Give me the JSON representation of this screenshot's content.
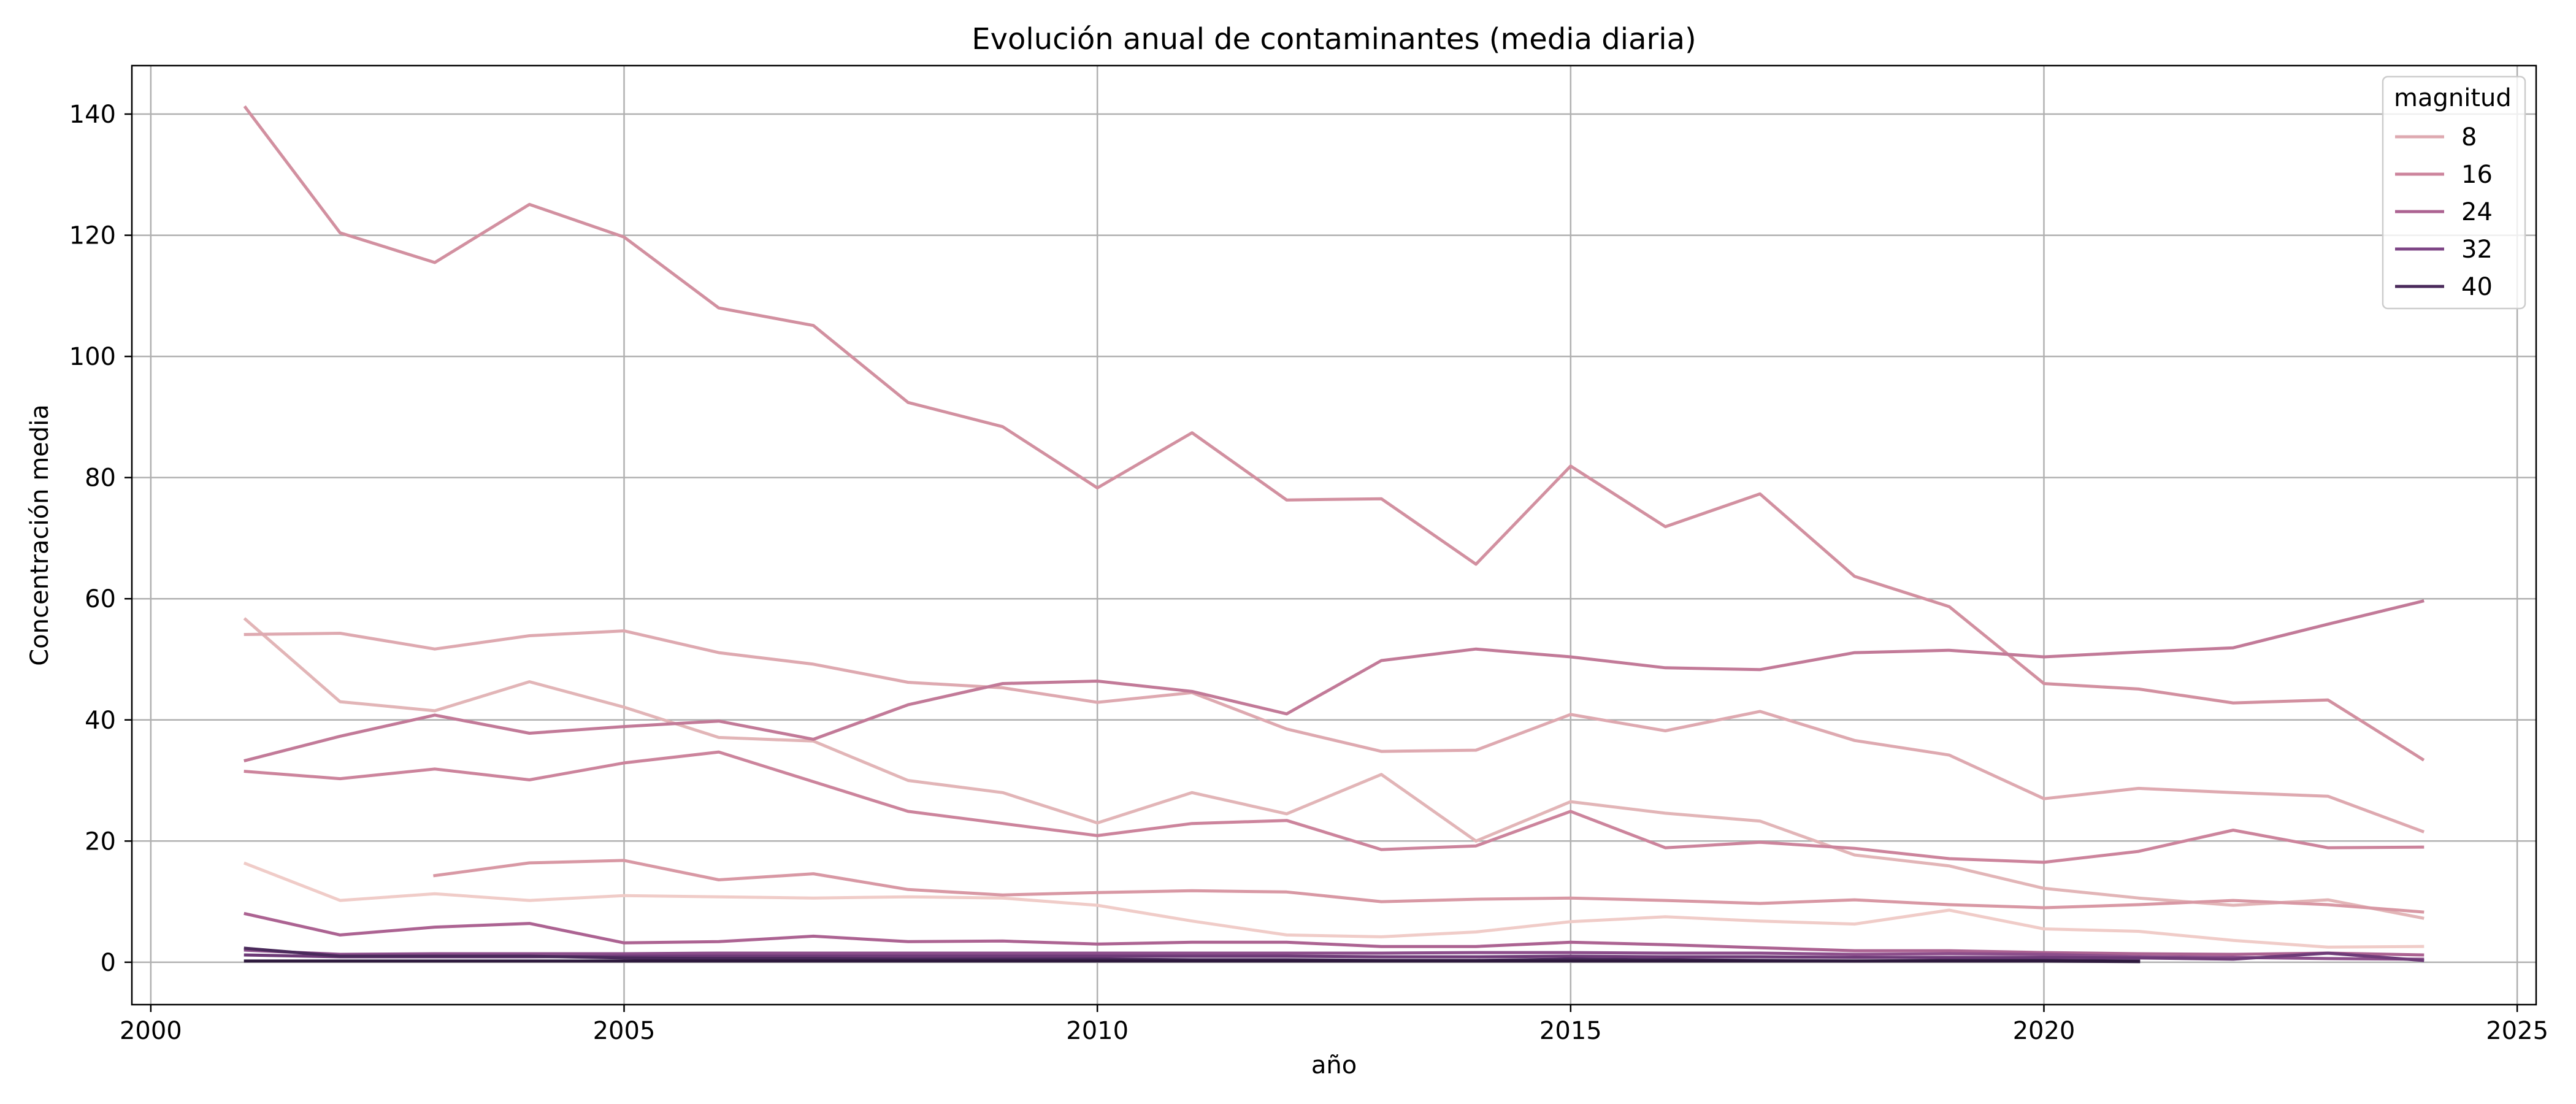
{
  "chart_data": {
    "type": "line",
    "title": "Evolución anual de contaminantes (media diaria)",
    "xlabel": "año",
    "ylabel": "Concentración media",
    "xlim": [
      1999.8,
      2025.2
    ],
    "ylim": [
      -7,
      148
    ],
    "xticks": [
      2000,
      2005,
      2010,
      2015,
      2020,
      2025
    ],
    "yticks": [
      0,
      20,
      40,
      60,
      80,
      100,
      120,
      140
    ],
    "grid": true,
    "legend": {
      "title": "magnitud",
      "placement": "top-right",
      "entries": [
        {
          "label": "8",
          "color": "#dea9b0"
        },
        {
          "label": "16",
          "color": "#cc849c"
        },
        {
          "label": "24",
          "color": "#ac6392"
        },
        {
          "label": "32",
          "color": "#7e4686"
        },
        {
          "label": "40",
          "color": "#4a2a5b"
        }
      ]
    },
    "series": [
      {
        "color": "#f0ccc8",
        "x": [
          2001,
          2002,
          2003,
          2004,
          2005,
          2006,
          2007,
          2008,
          2009,
          2010,
          2011,
          2012,
          2013,
          2014,
          2015,
          2016,
          2017,
          2018,
          2019,
          2020,
          2021,
          2022,
          2023,
          2024
        ],
        "y": [
          16.3,
          10.2,
          11.3,
          10.2,
          11.0,
          10.8,
          10.6,
          10.8,
          10.6,
          9.4,
          6.8,
          4.5,
          4.2,
          5.0,
          6.7,
          7.5,
          6.8,
          6.3,
          8.6,
          5.5,
          5.1,
          3.6,
          2.5,
          2.6
        ]
      },
      {
        "color": "#e2b5b7",
        "x": [
          2001,
          2002,
          2003,
          2004,
          2005,
          2006,
          2007,
          2008,
          2009,
          2010,
          2011,
          2012,
          2013,
          2014,
          2015,
          2016,
          2017,
          2018,
          2019,
          2020,
          2021,
          2022,
          2023,
          2024
        ],
        "y": [
          56.6,
          43.0,
          41.5,
          46.3,
          42.1,
          37.1,
          36.5,
          30.0,
          28.0,
          23.0,
          28.0,
          24.5,
          31.0,
          20.0,
          26.5,
          24.6,
          23.3,
          17.7,
          15.9,
          12.2,
          10.6,
          9.4,
          10.3,
          7.3
        ]
      },
      {
        "color": "#dea9b0",
        "x": [
          2001,
          2002,
          2003,
          2004,
          2005,
          2006,
          2007,
          2008,
          2009,
          2010,
          2011,
          2012,
          2013,
          2014,
          2015,
          2016,
          2017,
          2018,
          2019,
          2020,
          2021,
          2022,
          2023,
          2024
        ],
        "y": [
          54.1,
          54.3,
          51.7,
          53.9,
          54.7,
          51.1,
          49.2,
          46.2,
          45.3,
          42.9,
          44.5,
          38.5,
          34.8,
          35.0,
          40.9,
          38.2,
          41.4,
          36.6,
          34.2,
          27.0,
          28.7,
          28.0,
          27.4,
          21.6
        ]
      },
      {
        "color": "#d898a4",
        "x": [
          2003,
          2004,
          2005,
          2006,
          2007,
          2008,
          2009,
          2010,
          2011,
          2012,
          2013,
          2014,
          2015,
          2016,
          2017,
          2018,
          2019,
          2020,
          2021,
          2022,
          2023,
          2024
        ],
        "y": [
          14.3,
          16.4,
          16.8,
          13.6,
          14.6,
          12.0,
          11.1,
          11.5,
          11.8,
          11.6,
          10.0,
          10.4,
          10.6,
          10.2,
          9.7,
          10.3,
          9.5,
          9.0,
          9.5,
          10.2,
          9.5,
          8.3
        ]
      },
      {
        "color": "#d290a0",
        "x": [
          2001,
          2002,
          2003,
          2004,
          2005,
          2006,
          2007,
          2008,
          2009,
          2010,
          2011,
          2012,
          2013,
          2014,
          2015,
          2016,
          2017,
          2018,
          2019,
          2020,
          2021,
          2022,
          2023,
          2024
        ],
        "y": [
          141.1,
          120.4,
          115.5,
          125.1,
          119.7,
          108.0,
          105.1,
          92.4,
          88.4,
          78.3,
          87.4,
          76.3,
          76.5,
          65.7,
          81.9,
          71.9,
          77.3,
          63.7,
          58.7,
          46.0,
          45.1,
          42.8,
          43.3,
          33.5
        ]
      },
      {
        "color": "#cc849c",
        "x": [
          2001,
          2002,
          2003,
          2004,
          2005,
          2006,
          2007,
          2008,
          2009,
          2010,
          2011,
          2012,
          2013,
          2014,
          2015,
          2016,
          2017,
          2018,
          2019,
          2020,
          2021,
          2022,
          2023,
          2024
        ],
        "y": [
          31.5,
          30.3,
          31.9,
          30.1,
          32.9,
          34.7,
          29.8,
          24.9,
          22.9,
          20.9,
          22.9,
          23.4,
          18.6,
          19.2,
          24.9,
          18.9,
          19.8,
          18.8,
          17.1,
          16.5,
          18.3,
          21.8,
          18.9,
          19.0
        ]
      },
      {
        "color": "#c27a98",
        "x": [
          2001,
          2002,
          2003,
          2004,
          2005,
          2006,
          2007,
          2008,
          2009,
          2010,
          2011,
          2012,
          2013,
          2014,
          2015,
          2016,
          2017,
          2018,
          2019,
          2020,
          2021,
          2022,
          2023,
          2024
        ],
        "y": [
          33.3,
          37.3,
          40.8,
          37.8,
          38.9,
          39.8,
          36.8,
          42.5,
          46.0,
          46.4,
          44.7,
          41.0,
          49.8,
          51.7,
          50.4,
          48.6,
          48.3,
          51.1,
          51.5,
          50.4,
          51.2,
          51.9,
          55.8,
          59.6
        ]
      },
      {
        "color": "#ac6392",
        "x": [
          2001,
          2002,
          2003,
          2004,
          2005,
          2006,
          2007,
          2008,
          2009,
          2010,
          2011,
          2012,
          2013,
          2014,
          2015,
          2016,
          2017,
          2018,
          2019,
          2020,
          2021,
          2022,
          2023,
          2024
        ],
        "y": [
          8.0,
          4.5,
          5.8,
          6.4,
          3.2,
          3.4,
          4.3,
          3.4,
          3.5,
          3.0,
          3.3,
          3.3,
          2.6,
          2.6,
          3.3,
          2.9,
          2.4,
          1.9,
          1.9,
          1.6,
          1.4,
          1.3,
          1.5,
          1.2
        ]
      },
      {
        "color": "#8c4e8b",
        "x": [
          2001,
          2002,
          2003,
          2004,
          2005,
          2006,
          2007,
          2008,
          2009,
          2010,
          2011,
          2012,
          2013,
          2014,
          2015,
          2016,
          2017,
          2018,
          2019,
          2020,
          2021,
          2022,
          2023,
          2024
        ],
        "y": [
          2.0,
          1.3,
          1.4,
          1.4,
          1.4,
          1.5,
          1.5,
          1.5,
          1.5,
          1.5,
          1.5,
          1.5,
          1.5,
          1.6,
          1.6,
          1.5,
          1.5,
          1.3,
          1.4,
          1.3,
          0.9,
          0.8,
          0.6,
          0.5
        ]
      },
      {
        "color": "#6e3b78",
        "x": [
          2001,
          2002,
          2003,
          2004,
          2005,
          2006,
          2007,
          2008,
          2009,
          2010,
          2011,
          2012,
          2013,
          2014,
          2015,
          2016,
          2017,
          2018,
          2019,
          2020,
          2021,
          2022,
          2023,
          2024
        ],
        "y": [
          1.2,
          0.9,
          0.9,
          0.9,
          1.0,
          1.0,
          1.0,
          1.0,
          1.0,
          1.0,
          1.0,
          1.0,
          0.9,
          0.9,
          1.0,
          0.9,
          0.9,
          0.8,
          0.8,
          0.8,
          0.7,
          0.5,
          1.5,
          0.3
        ]
      },
      {
        "color": "#4a2a5b",
        "x": [
          2001,
          2002,
          2003,
          2004,
          2005,
          2006,
          2007,
          2008,
          2009,
          2010,
          2011,
          2012,
          2013,
          2014,
          2015,
          2016,
          2017,
          2018,
          2019,
          2020,
          2021
        ],
        "y": [
          2.3,
          1.0,
          1.0,
          1.0,
          0.7,
          0.6,
          0.6,
          0.5,
          0.5,
          0.5,
          0.4,
          0.4,
          0.3,
          0.3,
          0.5,
          0.4,
          0.3,
          0.2,
          0.3,
          0.3,
          0.2
        ]
      },
      {
        "color": "#2e1a3d",
        "x": [
          2001,
          2002,
          2003,
          2004,
          2005,
          2006,
          2007,
          2008,
          2009,
          2010,
          2011,
          2012,
          2013,
          2014,
          2015,
          2016,
          2017,
          2018,
          2019,
          2020,
          2021
        ],
        "y": [
          0.2,
          0.2,
          0.2,
          0.2,
          0.2,
          0.2,
          0.2,
          0.2,
          0.2,
          0.2,
          0.2,
          0.2,
          0.2,
          0.2,
          0.2,
          0.2,
          0.2,
          0.2,
          0.2,
          0.2,
          0.1
        ]
      }
    ]
  }
}
